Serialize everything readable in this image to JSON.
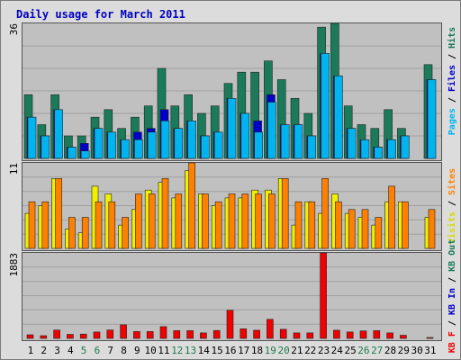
{
  "chart_data": {
    "type": "bar",
    "title": "Daily usage for March 2011",
    "categories": [
      "1",
      "2",
      "3",
      "4",
      "5",
      "6",
      "7",
      "8",
      "9",
      "10",
      "11",
      "12",
      "13",
      "14",
      "15",
      "16",
      "17",
      "18",
      "19",
      "20",
      "21",
      "22",
      "23",
      "24",
      "25",
      "26",
      "27",
      "28",
      "29",
      "30",
      "31"
    ],
    "weekend_days": [
      "5",
      "6",
      "12",
      "13",
      "19",
      "20",
      "26",
      "27"
    ],
    "panels": [
      {
        "ymax_label": "36",
        "ylim": [
          0,
          36
        ],
        "legend": [
          "Pages",
          "Files",
          "Hits"
        ],
        "series": [
          {
            "name": "Hits",
            "color": "#1a7a5a",
            "values": [
              17,
              9,
              17,
              6,
              6,
              11,
              13,
              8,
              11,
              14,
              24,
              14,
              17,
              12,
              14,
              20,
              23,
              23,
              26,
              21,
              16,
              12,
              35,
              36,
              14,
              9,
              8,
              13,
              8,
              0,
              25
            ]
          },
          {
            "name": "Files",
            "color": "#0000c8",
            "values": [
              11,
              6,
              13,
              3,
              4,
              8,
              7,
              5,
              7,
              8,
              13,
              8,
              10,
              6,
              7,
              16,
              12,
              10,
              17,
              9,
              9,
              6,
              28,
              22,
              8,
              5,
              3,
              5,
              6,
              0,
              21
            ]
          },
          {
            "name": "Pages",
            "color": "#00b4f0",
            "values": [
              11,
              6,
              13,
              3,
              2,
              8,
              7,
              5,
              5,
              7,
              10,
              8,
              10,
              6,
              7,
              16,
              12,
              7,
              15,
              9,
              9,
              6,
              28,
              22,
              8,
              5,
              3,
              5,
              6,
              0,
              21
            ]
          }
        ]
      },
      {
        "ymax_label": "11",
        "ylim": [
          0,
          11
        ],
        "legend": [
          "Visits",
          "Sites"
        ],
        "series": [
          {
            "name": "Visits",
            "color": "#f0f000",
            "values": [
              4.5,
              5.5,
              9.0,
              2.5,
              2.0,
              8.0,
              7.0,
              3.0,
              5.0,
              7.5,
              8.5,
              6.5,
              10.0,
              7.0,
              5.5,
              6.5,
              6.5,
              7.5,
              7.5,
              9.0,
              3.0,
              6.0,
              4.5,
              7.0,
              4.5,
              4.0,
              3.0,
              6.0,
              6.0,
              0.0,
              4.0
            ]
          },
          {
            "name": "Sites",
            "color": "#ff8000",
            "values": [
              6.0,
              6.0,
              9.0,
              4.0,
              4.0,
              6.0,
              6.0,
              4.0,
              7.0,
              7.0,
              9.0,
              7.0,
              11.0,
              7.0,
              6.0,
              7.0,
              7.0,
              7.0,
              7.0,
              9.0,
              6.0,
              6.0,
              9.0,
              6.0,
              5.0,
              5.0,
              4.0,
              8.0,
              6.0,
              0.0,
              5.0
            ]
          }
        ]
      },
      {
        "ymax_label": "1883",
        "ylim": [
          0,
          1883
        ],
        "legend": [
          "KB F",
          "KB In",
          "KB Out"
        ],
        "series": [
          {
            "name": "KB F",
            "color": "#f00000",
            "values": [
              80,
              60,
              185,
              90,
              95,
              140,
              185,
              300,
              150,
              150,
              260,
              170,
              170,
              120,
              175,
              620,
              210,
              180,
              420,
              200,
              120,
              120,
              1883,
              180,
              140,
              165,
              170,
              120,
              70,
              0,
              20
            ]
          }
        ]
      }
    ],
    "legend_colors": {
      "Pages": "#00b4f0",
      "Files": "#0000c8",
      "Hits": "#1a7a5a",
      "Visits": "#d8d800",
      "Sites": "#ff8000",
      "KB F": "#f00000",
      "KB In": "#0000c8",
      "KB Out": "#1a7a5a",
      "separator": "#000000"
    }
  }
}
